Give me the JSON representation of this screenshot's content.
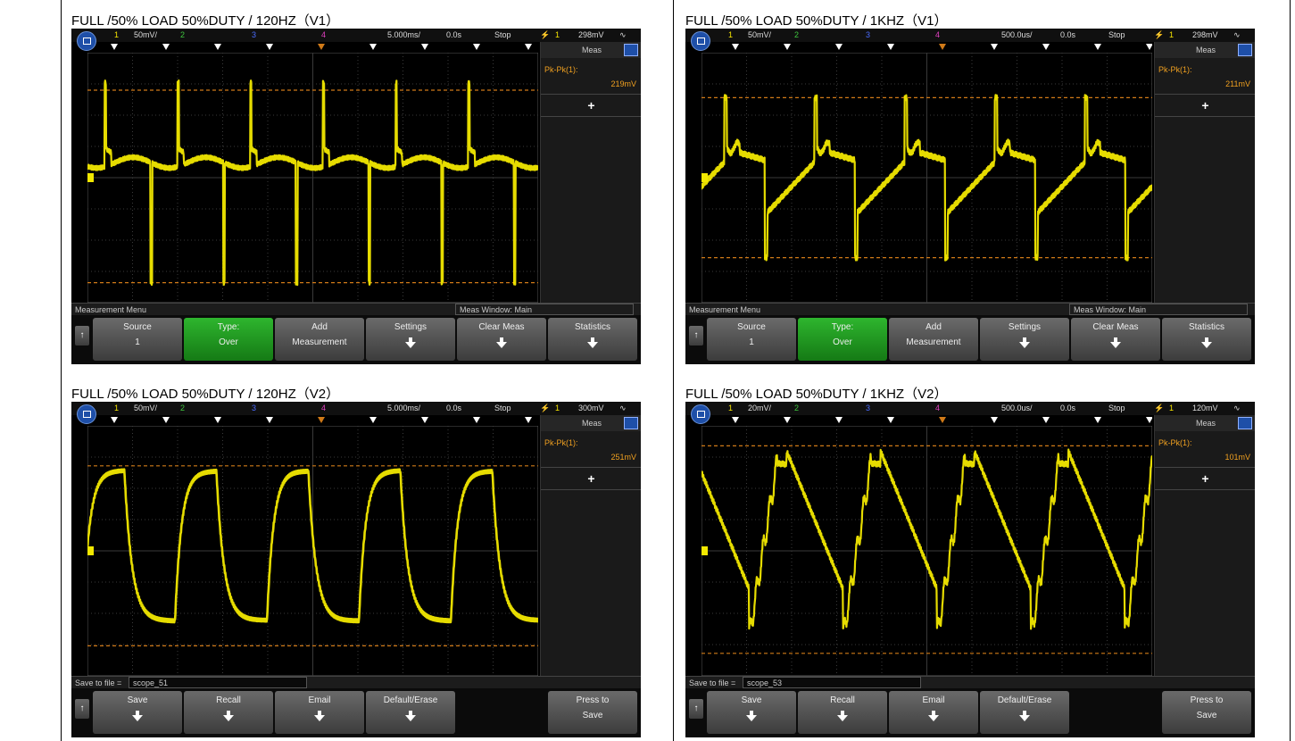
{
  "panels": [
    {
      "caption": "FULL /50% LOAD 50%DUTY / 120HZ（V1）",
      "topbar": {
        "ch1": "1",
        "ch1_scale": "50mV/",
        "ch2": "2",
        "ch3": "3",
        "ch4": "4",
        "timebase": "5.000ms/",
        "delay": "0.0s",
        "run_state": "Stop",
        "trig_icon": "⚡",
        "trig_ch": "1",
        "trig_level": "298mV"
      },
      "meas": {
        "header": "Meas",
        "label": "Pk-Pk(1):",
        "value": "219mV",
        "add": "+"
      },
      "status": {
        "left": "Measurement Menu",
        "right": "Meas Window: Main"
      },
      "softkeys": [
        {
          "title": "Source",
          "sub": "1",
          "green": false,
          "arrow": false
        },
        {
          "title": "Type:",
          "sub": "Over",
          "green": true,
          "arrow": false
        },
        {
          "title": "Add",
          "sub": "Measurement",
          "green": false,
          "arrow": false
        },
        {
          "title": "Settings",
          "sub": "",
          "green": false,
          "arrow": true
        },
        {
          "title": "Clear Meas",
          "sub": "",
          "green": false,
          "arrow": true
        },
        {
          "title": "Statistics",
          "sub": "",
          "green": false,
          "arrow": true
        }
      ],
      "wave": "v1_120"
    },
    {
      "caption": "FULL /50% LOAD 50%DUTY / 1KHZ（V1）",
      "topbar": {
        "ch1": "1",
        "ch1_scale": "50mV/",
        "ch2": "2",
        "ch3": "3",
        "ch4": "4",
        "timebase": "500.0us/",
        "delay": "0.0s",
        "run_state": "Stop",
        "trig_icon": "⚡",
        "trig_ch": "1",
        "trig_level": "298mV"
      },
      "meas": {
        "header": "Meas",
        "label": "Pk-Pk(1):",
        "value": "211mV",
        "add": "+"
      },
      "status": {
        "left": "Measurement Menu",
        "right": "Meas Window: Main"
      },
      "softkeys": [
        {
          "title": "Source",
          "sub": "1",
          "green": false,
          "arrow": false
        },
        {
          "title": "Type:",
          "sub": "Over",
          "green": true,
          "arrow": false
        },
        {
          "title": "Add",
          "sub": "Measurement",
          "green": false,
          "arrow": false
        },
        {
          "title": "Settings",
          "sub": "",
          "green": false,
          "arrow": true
        },
        {
          "title": "Clear Meas",
          "sub": "",
          "green": false,
          "arrow": true
        },
        {
          "title": "Statistics",
          "sub": "",
          "green": false,
          "arrow": true
        }
      ],
      "wave": "v1_1k"
    },
    {
      "caption": "FULL /50% LOAD 50%DUTY / 120HZ（V2）",
      "topbar": {
        "ch1": "1",
        "ch1_scale": "50mV/",
        "ch2": "2",
        "ch3": "3",
        "ch4": "4",
        "timebase": "5.000ms/",
        "delay": "0.0s",
        "run_state": "Stop",
        "trig_icon": "⚡",
        "trig_ch": "1",
        "trig_level": "300mV"
      },
      "meas": {
        "header": "Meas",
        "label": "Pk-Pk(1):",
        "value": "251mV",
        "add": "+"
      },
      "status": {
        "left": "Save to file =",
        "file": "scope_51"
      },
      "softkeys": [
        {
          "title": "Save",
          "sub": "",
          "green": false,
          "arrow": true
        },
        {
          "title": "Recall",
          "sub": "",
          "green": false,
          "arrow": true
        },
        {
          "title": "Email",
          "sub": "",
          "green": false,
          "arrow": true
        },
        {
          "title": "Default/Erase",
          "sub": "",
          "green": false,
          "arrow": true
        },
        {
          "title": "",
          "sub": "",
          "green": false,
          "arrow": false,
          "hidden": true
        },
        {
          "title": "Press to",
          "sub": "Save",
          "green": false,
          "arrow": false
        }
      ],
      "wave": "v2_120"
    },
    {
      "caption": "FULL /50% LOAD 50%DUTY / 1KHZ（V2）",
      "topbar": {
        "ch1": "1",
        "ch1_scale": "20mV/",
        "ch2": "2",
        "ch3": "3",
        "ch4": "4",
        "timebase": "500.0us/",
        "delay": "0.0s",
        "run_state": "Stop",
        "trig_icon": "⚡",
        "trig_ch": "1",
        "trig_level": "120mV"
      },
      "meas": {
        "header": "Meas",
        "label": "Pk-Pk(1):",
        "value": "101mV",
        "add": "+"
      },
      "status": {
        "left": "Save to file =",
        "file": "scope_53"
      },
      "softkeys": [
        {
          "title": "Save",
          "sub": "",
          "green": false,
          "arrow": true
        },
        {
          "title": "Recall",
          "sub": "",
          "green": false,
          "arrow": true
        },
        {
          "title": "Email",
          "sub": "",
          "green": false,
          "arrow": true
        },
        {
          "title": "Default/Erase",
          "sub": "",
          "green": false,
          "arrow": true
        },
        {
          "title": "",
          "sub": "",
          "green": false,
          "arrow": false,
          "hidden": true
        },
        {
          "title": "Press to",
          "sub": "Save",
          "green": false,
          "arrow": false
        }
      ],
      "wave": "v2_1k"
    }
  ],
  "colors": {
    "trace": "#f2e800",
    "cursor": "#d07a18",
    "grid": "#3a3a3a",
    "bg": "#000000"
  },
  "icons": {
    "home": "home-icon",
    "meas": "meas-menu-icon",
    "back": "back-arrow-icon",
    "trigger": "trigger-marker-icon"
  }
}
